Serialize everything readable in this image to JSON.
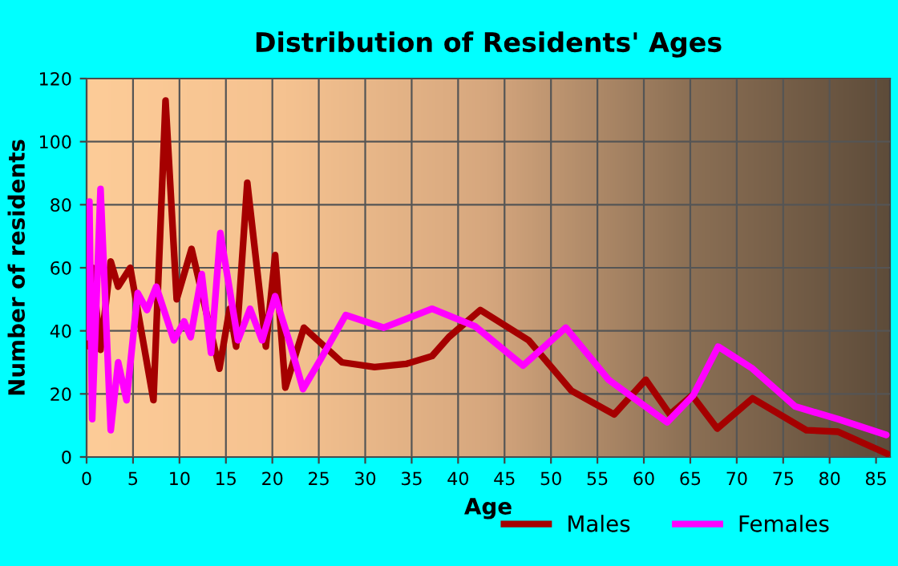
{
  "chart_data": {
    "type": "line",
    "title": "Distribution of Residents' Ages",
    "xlabel": "Age",
    "ylabel": "Number of residents",
    "xlim": [
      0,
      86.5
    ],
    "xticks": [
      0,
      5,
      10,
      15,
      20,
      25,
      30,
      35,
      40,
      45,
      50,
      55,
      60,
      65,
      70,
      75,
      80,
      85
    ],
    "ylim": [
      0,
      120
    ],
    "yticks": [
      0,
      20,
      40,
      60,
      80,
      100,
      120
    ],
    "grid": true,
    "legend": "bottom right",
    "marker": "none",
    "line_style": "solid",
    "series": [
      {
        "name": "Males",
        "color": "#a50000",
        "x": [
          0,
          0.3,
          0.6,
          1.5,
          2.6,
          3.4,
          4.7,
          7.2,
          8.5,
          9.7,
          11.3,
          14.3,
          15.4,
          16.1,
          17.3,
          19.3,
          20.3,
          21.4,
          23.4,
          27.5,
          31,
          34.4,
          37.2,
          39,
          42.4,
          47.6,
          52.2,
          56.8,
          60.2,
          62.8,
          65.2,
          67.9,
          71.7,
          77.5,
          80.9,
          86.2
        ],
        "values": [
          50,
          35,
          60,
          34,
          62,
          54,
          60,
          18,
          113,
          50,
          66,
          28,
          47,
          35,
          87,
          35,
          64,
          22,
          41,
          30,
          28.5,
          29.5,
          32,
          38,
          46.6,
          37,
          21,
          13.5,
          24.5,
          13.5,
          19.5,
          9,
          18.6,
          8.5,
          8,
          1
        ]
      },
      {
        "name": "Females",
        "color": "#ff00ff",
        "x": [
          0,
          0.3,
          0.6,
          1.5,
          2.6,
          3.4,
          4.3,
          5.5,
          6.5,
          7.5,
          9.4,
          10.5,
          11.2,
          12.4,
          13.4,
          14.4,
          16.3,
          17.6,
          18.9,
          20.3,
          22,
          23.3,
          25.2,
          27.9,
          32,
          37.2,
          41.8,
          47,
          51.6,
          56.2,
          62.5,
          65.3,
          68,
          71.7,
          76.3,
          80.9,
          86.1
        ],
        "values": [
          38,
          81,
          12,
          85,
          8.5,
          30,
          18,
          52,
          46.6,
          54,
          37,
          43,
          38,
          58,
          33,
          71,
          37,
          47,
          37,
          51,
          35,
          21.5,
          31,
          45,
          41,
          47,
          41.5,
          29,
          41,
          24.5,
          11,
          19.5,
          35,
          28,
          16,
          12,
          7
        ]
      }
    ]
  }
}
